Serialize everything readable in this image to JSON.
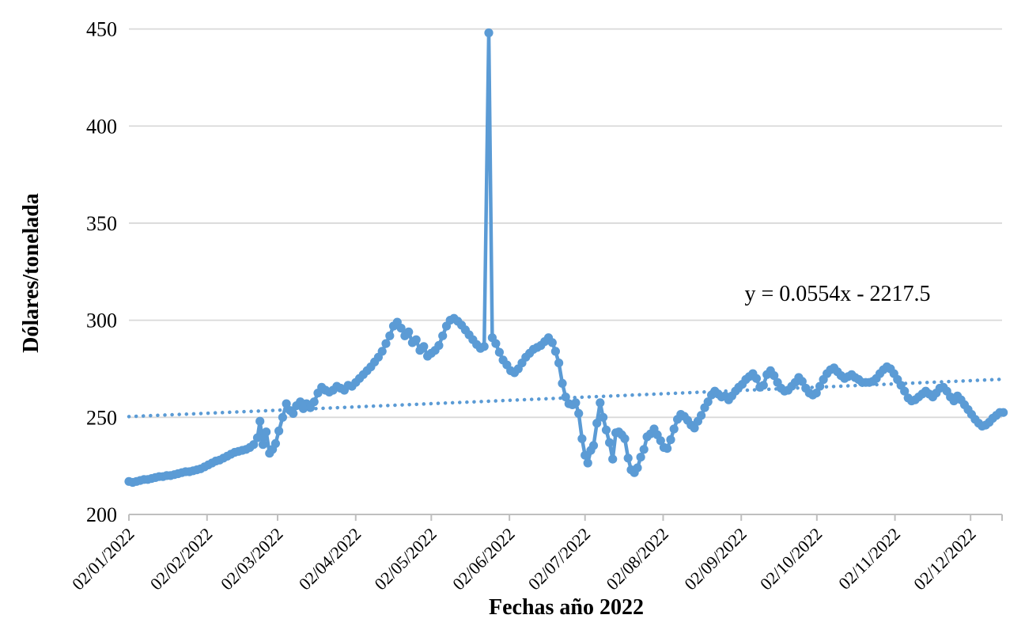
{
  "chart_data": {
    "type": "line",
    "title": "",
    "xlabel": "Fechas año 2022",
    "ylabel": "Dólares/tonelada",
    "ylim": [
      200,
      450
    ],
    "y_ticks": [
      450,
      400,
      350,
      300,
      250,
      200
    ],
    "grid": "horizontal",
    "legend": "none",
    "x_unit": "day_of_year_2022",
    "x_range_doy": [
      2,
      348.5
    ],
    "x_ticks": [
      {
        "label": "02/01/2022",
        "doy": 2
      },
      {
        "label": "02/02/2022",
        "doy": 33
      },
      {
        "label": "02/03/2022",
        "doy": 61
      },
      {
        "label": "02/04/2022",
        "doy": 92
      },
      {
        "label": "02/05/2022",
        "doy": 122
      },
      {
        "label": "02/06/2022",
        "doy": 153
      },
      {
        "label": "02/07/2022",
        "doy": 183
      },
      {
        "label": "02/08/2022",
        "doy": 214
      },
      {
        "label": "02/09/2022",
        "doy": 245
      },
      {
        "label": "02/10/2022",
        "doy": 275
      },
      {
        "label": "02/11/2022",
        "doy": 306
      },
      {
        "label": "02/12/2022",
        "doy": 336
      }
    ],
    "colors": {
      "series": "#5B9BD5",
      "trendline": "#5B9BD5",
      "gridline": "#D9D9D9",
      "axis": "#BFBFBF",
      "text": "#000000"
    },
    "trendline": {
      "label": "y = 0.0554x - 2217.5",
      "style": "dotted",
      "start": {
        "doy": 2,
        "value": 250.4
      },
      "end": {
        "doy": 348.5,
        "value": 269.6
      }
    },
    "series": [
      {
        "name": "",
        "points": [
          [
            2,
            217
          ],
          [
            3.5,
            216.5
          ],
          [
            5,
            217
          ],
          [
            6.5,
            217.5
          ],
          [
            8,
            218
          ],
          [
            9.5,
            218
          ],
          [
            11,
            218.5
          ],
          [
            12.5,
            219
          ],
          [
            14,
            219.5
          ],
          [
            15.5,
            219.5
          ],
          [
            17,
            220
          ],
          [
            18.5,
            220
          ],
          [
            20,
            220.5
          ],
          [
            21.5,
            221
          ],
          [
            23,
            221.5
          ],
          [
            24.5,
            222
          ],
          [
            26,
            222
          ],
          [
            27.5,
            222.5
          ],
          [
            29,
            223
          ],
          [
            30.5,
            223.5
          ],
          [
            32,
            224.5
          ],
          [
            33.5,
            225.5
          ],
          [
            35,
            226.5
          ],
          [
            36.5,
            227.5
          ],
          [
            38,
            228
          ],
          [
            39.5,
            229
          ],
          [
            41,
            230
          ],
          [
            42.5,
            231
          ],
          [
            44,
            232
          ],
          [
            45.5,
            232.5
          ],
          [
            47,
            233
          ],
          [
            48.5,
            233.5
          ],
          [
            50,
            234.5
          ],
          [
            51.5,
            236
          ],
          [
            53,
            239.5
          ],
          [
            54,
            248
          ],
          [
            55.2,
            236
          ],
          [
            56.5,
            242.5
          ],
          [
            57.8,
            231.5
          ],
          [
            59,
            233.5
          ],
          [
            60.2,
            236.5
          ],
          [
            61.5,
            243
          ],
          [
            63,
            250
          ],
          [
            64.5,
            257
          ],
          [
            66,
            253.5
          ],
          [
            67.2,
            252
          ],
          [
            68.5,
            256
          ],
          [
            70,
            258
          ],
          [
            71.2,
            254.5
          ],
          [
            72.5,
            257
          ],
          [
            74,
            255
          ],
          [
            75.5,
            258
          ],
          [
            77,
            262.5
          ],
          [
            78.5,
            265.5
          ],
          [
            80,
            264
          ],
          [
            81.5,
            263
          ],
          [
            83,
            264
          ],
          [
            84.5,
            266
          ],
          [
            86,
            265
          ],
          [
            87.5,
            264
          ],
          [
            89,
            266.5
          ],
          [
            90.5,
            266
          ],
          [
            92,
            268
          ],
          [
            93.5,
            270
          ],
          [
            95,
            272
          ],
          [
            96.5,
            274
          ],
          [
            98,
            276
          ],
          [
            99.5,
            278.5
          ],
          [
            101,
            281
          ],
          [
            102.5,
            284
          ],
          [
            104,
            288
          ],
          [
            105.5,
            292
          ],
          [
            107,
            297
          ],
          [
            108.5,
            299
          ],
          [
            110,
            296
          ],
          [
            111.5,
            292
          ],
          [
            113,
            294
          ],
          [
            114.5,
            288.5
          ],
          [
            116,
            290
          ],
          [
            117.5,
            284.5
          ],
          [
            119,
            286.5
          ],
          [
            120.5,
            281.5
          ],
          [
            122,
            283
          ],
          [
            123.5,
            284.5
          ],
          [
            125,
            287
          ],
          [
            126.5,
            292
          ],
          [
            128,
            297
          ],
          [
            129.5,
            300
          ],
          [
            131,
            301
          ],
          [
            132.5,
            299.5
          ],
          [
            134,
            297.5
          ],
          [
            135.5,
            295
          ],
          [
            137,
            292.5
          ],
          [
            138.5,
            290
          ],
          [
            140,
            287.5
          ],
          [
            141.5,
            285.5
          ],
          [
            143,
            286.5
          ],
          [
            144.8,
            448
          ],
          [
            146.2,
            291
          ],
          [
            147.6,
            288
          ],
          [
            149,
            283.5
          ],
          [
            150.5,
            279.5
          ],
          [
            152,
            277
          ],
          [
            153.5,
            274
          ],
          [
            155,
            273
          ],
          [
            156.5,
            275
          ],
          [
            158,
            278
          ],
          [
            159.5,
            281
          ],
          [
            161,
            283
          ],
          [
            162.5,
            285
          ],
          [
            164,
            286
          ],
          [
            165.5,
            287
          ],
          [
            167,
            289
          ],
          [
            168.5,
            291
          ],
          [
            170,
            288.5
          ],
          [
            171.3,
            284
          ],
          [
            172.6,
            278
          ],
          [
            174,
            267.5
          ],
          [
            175.3,
            260.5
          ],
          [
            176.6,
            257
          ],
          [
            178,
            256.5
          ],
          [
            179.3,
            257.5
          ],
          [
            180.5,
            252
          ],
          [
            181.8,
            239
          ],
          [
            183,
            230.5
          ],
          [
            184.1,
            226.5
          ],
          [
            185.3,
            233
          ],
          [
            186.4,
            235.5
          ],
          [
            187.7,
            247
          ],
          [
            189,
            257.5
          ],
          [
            190.2,
            250
          ],
          [
            191.4,
            243.5
          ],
          [
            192.7,
            237
          ],
          [
            194,
            228.5
          ],
          [
            195.2,
            242
          ],
          [
            196.4,
            242.5
          ],
          [
            197.6,
            241
          ],
          [
            198.8,
            239
          ],
          [
            200.1,
            229
          ],
          [
            201.3,
            223
          ],
          [
            202.6,
            221.5
          ],
          [
            203.8,
            224
          ],
          [
            205.1,
            229.5
          ],
          [
            206.4,
            233.5
          ],
          [
            207.6,
            240
          ],
          [
            209,
            241.5
          ],
          [
            210.4,
            244
          ],
          [
            211.7,
            241
          ],
          [
            213,
            238
          ],
          [
            214.3,
            234.5
          ],
          [
            215.6,
            234
          ],
          [
            217,
            238.5
          ],
          [
            218.3,
            244
          ],
          [
            219.7,
            249
          ],
          [
            221,
            251.5
          ],
          [
            222.4,
            250.5
          ],
          [
            223.7,
            248.5
          ],
          [
            225.1,
            246
          ],
          [
            226.4,
            244.5
          ],
          [
            227.8,
            248
          ],
          [
            229.1,
            251
          ],
          [
            230.5,
            255
          ],
          [
            231.8,
            258
          ],
          [
            233.2,
            261.5
          ],
          [
            234.5,
            263.5
          ],
          [
            235.9,
            262
          ],
          [
            237.2,
            260.5
          ],
          [
            238.6,
            261
          ],
          [
            240,
            259
          ],
          [
            241.3,
            261
          ],
          [
            242.7,
            263.5
          ],
          [
            244,
            265.5
          ],
          [
            245.4,
            267
          ],
          [
            246.8,
            269.5
          ],
          [
            248.2,
            271
          ],
          [
            249.6,
            272.5
          ],
          [
            251,
            270
          ],
          [
            252.4,
            265.5
          ],
          [
            253.8,
            266.5
          ],
          [
            255.2,
            272
          ],
          [
            256.6,
            274
          ],
          [
            258,
            271.5
          ],
          [
            259.4,
            268
          ],
          [
            260.8,
            265
          ],
          [
            262.2,
            263.5
          ],
          [
            263.6,
            264
          ],
          [
            265,
            266
          ],
          [
            266.4,
            268
          ],
          [
            267.8,
            270.5
          ],
          [
            269.2,
            268.5
          ],
          [
            270.6,
            265
          ],
          [
            272,
            262.5
          ],
          [
            273.4,
            261.5
          ],
          [
            274.8,
            262.5
          ],
          [
            276.2,
            266
          ],
          [
            277.6,
            269.5
          ],
          [
            279,
            272.5
          ],
          [
            280.4,
            274.5
          ],
          [
            281.8,
            275.5
          ],
          [
            283.2,
            273.5
          ],
          [
            284.6,
            271.5
          ],
          [
            286,
            270
          ],
          [
            287.4,
            271
          ],
          [
            288.8,
            272
          ],
          [
            290.2,
            270.5
          ],
          [
            291.6,
            269.5
          ],
          [
            293,
            268
          ],
          [
            294.4,
            268
          ],
          [
            295.8,
            268
          ],
          [
            297.2,
            268.5
          ],
          [
            298.6,
            270
          ],
          [
            300,
            272.5
          ],
          [
            301.4,
            274.5
          ],
          [
            302.8,
            276
          ],
          [
            304.2,
            275
          ],
          [
            305.6,
            272.5
          ],
          [
            307,
            269.5
          ],
          [
            308.4,
            266.5
          ],
          [
            309.8,
            263.5
          ],
          [
            311.2,
            260
          ],
          [
            312.6,
            258.5
          ],
          [
            314,
            259
          ],
          [
            315.4,
            260.5
          ],
          [
            316.8,
            262
          ],
          [
            318.2,
            263.5
          ],
          [
            319.6,
            262
          ],
          [
            321,
            260.5
          ],
          [
            322.4,
            262.5
          ],
          [
            323.8,
            265
          ],
          [
            325.2,
            265.5
          ],
          [
            326.6,
            263.5
          ],
          [
            328,
            260.5
          ],
          [
            329.4,
            258.5
          ],
          [
            330.8,
            261
          ],
          [
            332.2,
            259
          ],
          [
            333.6,
            256.5
          ],
          [
            335,
            254
          ],
          [
            336.4,
            251.5
          ],
          [
            337.8,
            249
          ],
          [
            339.2,
            247
          ],
          [
            340.6,
            245.5
          ],
          [
            342,
            246
          ],
          [
            343.4,
            247.5
          ],
          [
            344.8,
            249.5
          ],
          [
            346.2,
            251
          ],
          [
            347.6,
            252.5
          ],
          [
            349,
            252.5
          ]
        ]
      }
    ]
  }
}
